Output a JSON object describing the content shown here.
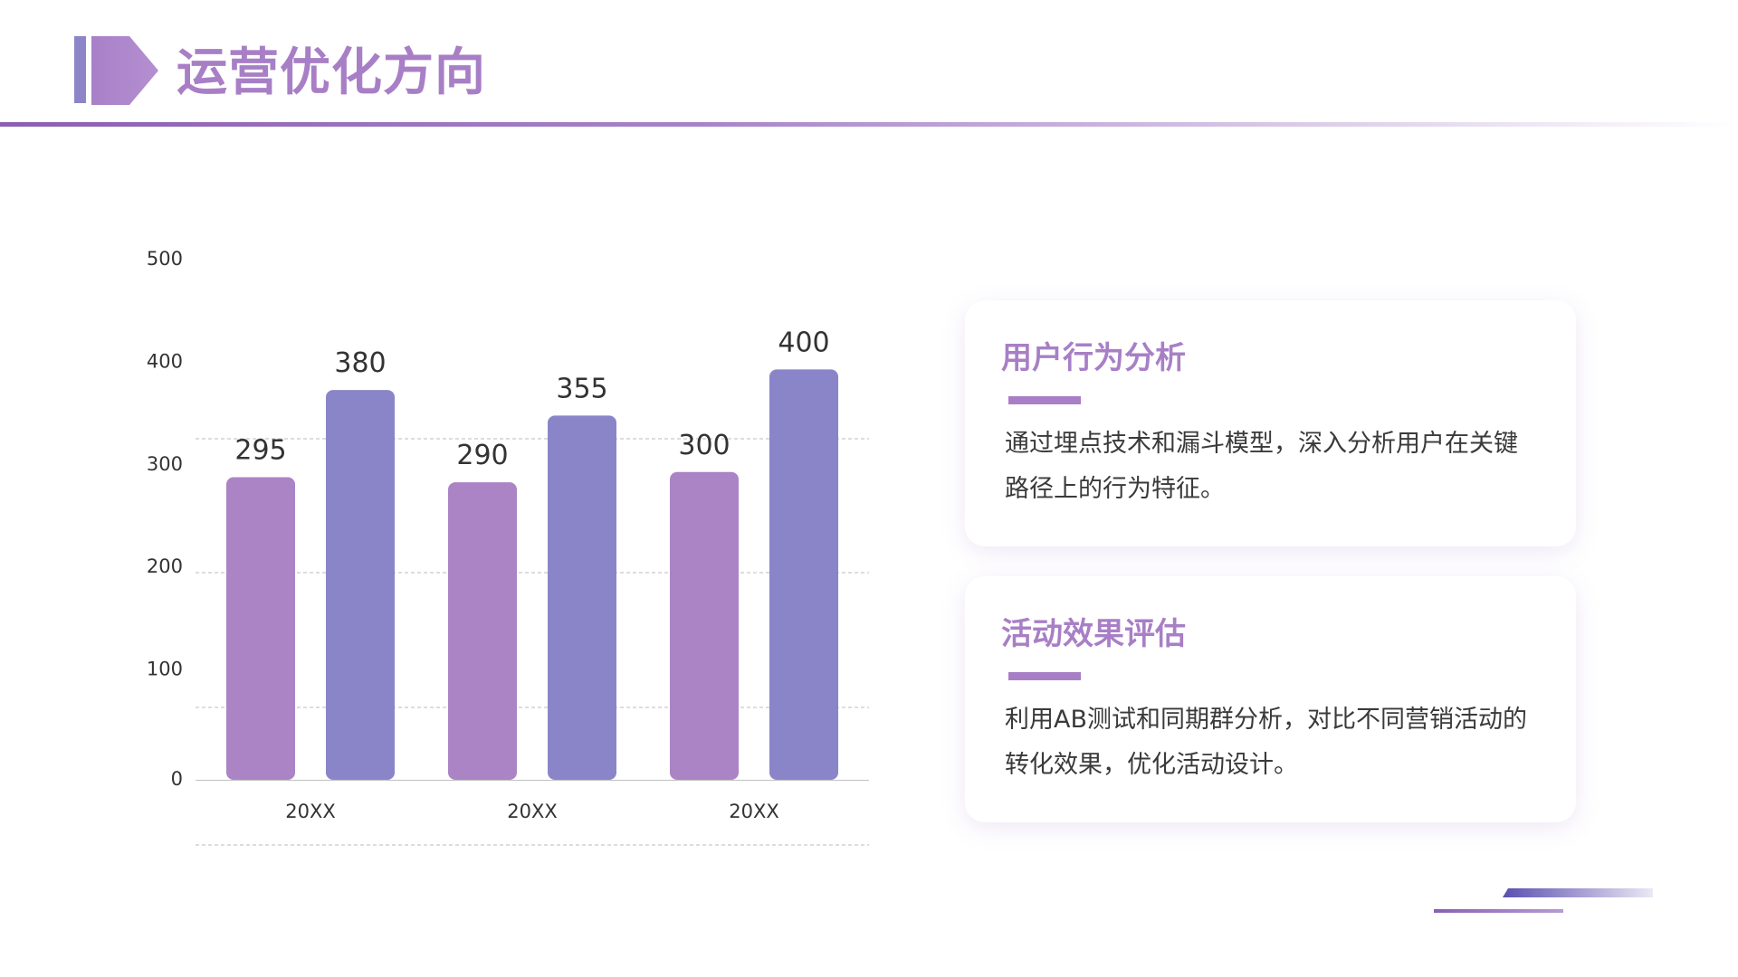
{
  "page": {
    "title": "运营优化方向"
  },
  "colors": {
    "accent": "#a87fc6",
    "series_a": "#ab84c5",
    "series_b": "#8a85c8",
    "grid": "#bbbbbb"
  },
  "chart_data": {
    "type": "bar",
    "categories": [
      "20XX",
      "20XX",
      "20XX"
    ],
    "series": [
      {
        "values": [
          295,
          290,
          300
        ]
      },
      {
        "values": [
          380,
          355,
          400
        ]
      }
    ],
    "ylim": [
      0,
      500
    ],
    "yticks": [
      0,
      100,
      200,
      300,
      400,
      500
    ],
    "grid": true,
    "legend": "none"
  },
  "cards": [
    {
      "title": "用户行为分析",
      "body": "通过埋点技术和漏斗模型，深入分析用户在关键路径上的行为特征。"
    },
    {
      "title": "活动效果评估",
      "body": "利用AB测试和同期群分析，对比不同营销活动的转化效果，优化活动设计。"
    }
  ]
}
